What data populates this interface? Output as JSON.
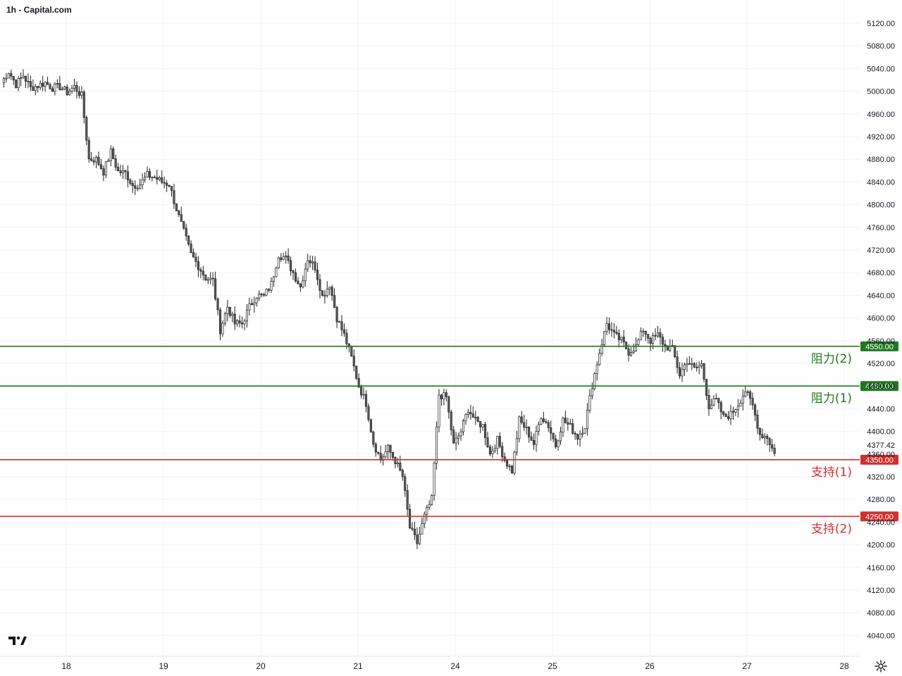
{
  "header": {
    "title": "1h - Capital.com"
  },
  "icons": {
    "logo": "tradingview-logo",
    "settings": "gear-icon"
  },
  "colors": {
    "grid": "#f0f3fa",
    "candle_up_fill": "#ffffff",
    "candle_down_fill": "#5d5d5d",
    "candle_outline": "#1e1e1e",
    "resistance": "#1f7a1f",
    "support": "#d32f2f"
  },
  "chart_data": {
    "type": "candlestick",
    "title": "",
    "xlabel": "",
    "ylabel": "",
    "ylim": [
      4020,
      5130
    ],
    "grid": true,
    "x_ticks": [
      "18",
      "19",
      "20",
      "21",
      "24",
      "25",
      "26",
      "27",
      "28"
    ],
    "y_ticks": [
      "5120.00",
      "5080.00",
      "5040.00",
      "5000.00",
      "4960.00",
      "4920.00",
      "4880.00",
      "4840.00",
      "4800.00",
      "4760.00",
      "4720.00",
      "4680.00",
      "4640.00",
      "4600.00",
      "4560.00",
      "4520.00",
      "4480.00",
      "4440.00",
      "4400.00",
      "4360.00",
      "4320.00",
      "4280.00",
      "4240.00",
      "4200.00",
      "4160.00",
      "4120.00",
      "4080.00",
      "4040.00"
    ],
    "last_price": "4377.42",
    "levels": [
      {
        "value": 4550,
        "price_label": "4550.00",
        "label": "阻力(2)",
        "kind": "resistance"
      },
      {
        "value": 4480,
        "price_label": "4480.00",
        "label": "阻力(1)",
        "kind": "resistance"
      },
      {
        "value": 4350,
        "price_label": "4350.00",
        "label": "支持(1)",
        "kind": "support"
      },
      {
        "value": 4250,
        "price_label": "4250.00",
        "label": "支持(2)",
        "kind": "support"
      }
    ],
    "path": [
      [
        0,
        5015
      ],
      [
        3,
        5035
      ],
      [
        6,
        5012
      ],
      [
        9,
        5028
      ],
      [
        12,
        5006
      ],
      [
        15,
        5010
      ],
      [
        18,
        5015
      ],
      [
        21,
        5006
      ],
      [
        24,
        5008
      ],
      [
        27,
        4998
      ],
      [
        30,
        5008
      ],
      [
        33,
        4992
      ],
      [
        36,
        4880
      ],
      [
        39,
        4880
      ],
      [
        42,
        4858
      ],
      [
        45,
        4893
      ],
      [
        48,
        4858
      ],
      [
        51,
        4856
      ],
      [
        54,
        4834
      ],
      [
        57,
        4836
      ],
      [
        60,
        4852
      ],
      [
        63,
        4848
      ],
      [
        66,
        4840
      ],
      [
        69,
        4836
      ],
      [
        72,
        4792
      ],
      [
        75,
        4752
      ],
      [
        78,
        4712
      ],
      [
        81,
        4692
      ],
      [
        84,
        4671
      ],
      [
        87,
        4666
      ],
      [
        90,
        4579
      ],
      [
        93,
        4620
      ],
      [
        96,
        4590
      ],
      [
        99,
        4590
      ],
      [
        102,
        4620
      ],
      [
        105,
        4640
      ],
      [
        108,
        4638
      ],
      [
        111,
        4660
      ],
      [
        114,
        4712
      ],
      [
        117,
        4705
      ],
      [
        120,
        4680
      ],
      [
        123,
        4655
      ],
      [
        126,
        4705
      ],
      [
        129,
        4690
      ],
      [
        132,
        4638
      ],
      [
        135,
        4660
      ],
      [
        138,
        4600
      ],
      [
        141,
        4570
      ],
      [
        144,
        4530
      ],
      [
        147,
        4480
      ],
      [
        150,
        4450
      ],
      [
        153,
        4380
      ],
      [
        156,
        4350
      ],
      [
        159,
        4370
      ],
      [
        162,
        4348
      ],
      [
        165,
        4320
      ],
      [
        168,
        4230
      ],
      [
        171,
        4203
      ],
      [
        174,
        4250
      ],
      [
        177,
        4280
      ],
      [
        180,
        4465
      ],
      [
        183,
        4460
      ],
      [
        186,
        4376
      ],
      [
        189,
        4400
      ],
      [
        192,
        4440
      ],
      [
        195,
        4418
      ],
      [
        198,
        4410
      ],
      [
        201,
        4360
      ],
      [
        204,
        4385
      ],
      [
        207,
        4350
      ],
      [
        210,
        4330
      ],
      [
        213,
        4420
      ],
      [
        216,
        4403
      ],
      [
        219,
        4378
      ],
      [
        222,
        4428
      ],
      [
        225,
        4410
      ],
      [
        228,
        4375
      ],
      [
        231,
        4420
      ],
      [
        234,
        4408
      ],
      [
        237,
        4390
      ],
      [
        240,
        4410
      ],
      [
        243,
        4482
      ],
      [
        246,
        4540
      ],
      [
        249,
        4590
      ],
      [
        252,
        4570
      ],
      [
        255,
        4560
      ],
      [
        258,
        4540
      ],
      [
        261,
        4550
      ],
      [
        264,
        4580
      ],
      [
        267,
        4560
      ],
      [
        270,
        4570
      ],
      [
        273,
        4550
      ],
      [
        276,
        4545
      ],
      [
        279,
        4500
      ],
      [
        282,
        4525
      ],
      [
        285,
        4510
      ],
      [
        288,
        4518
      ],
      [
        291,
        4445
      ],
      [
        294,
        4455
      ],
      [
        297,
        4425
      ],
      [
        300,
        4430
      ],
      [
        303,
        4448
      ],
      [
        306,
        4472
      ],
      [
        309,
        4445
      ],
      [
        312,
        4395
      ],
      [
        315,
        4390
      ],
      [
        318,
        4360
      ]
    ]
  }
}
